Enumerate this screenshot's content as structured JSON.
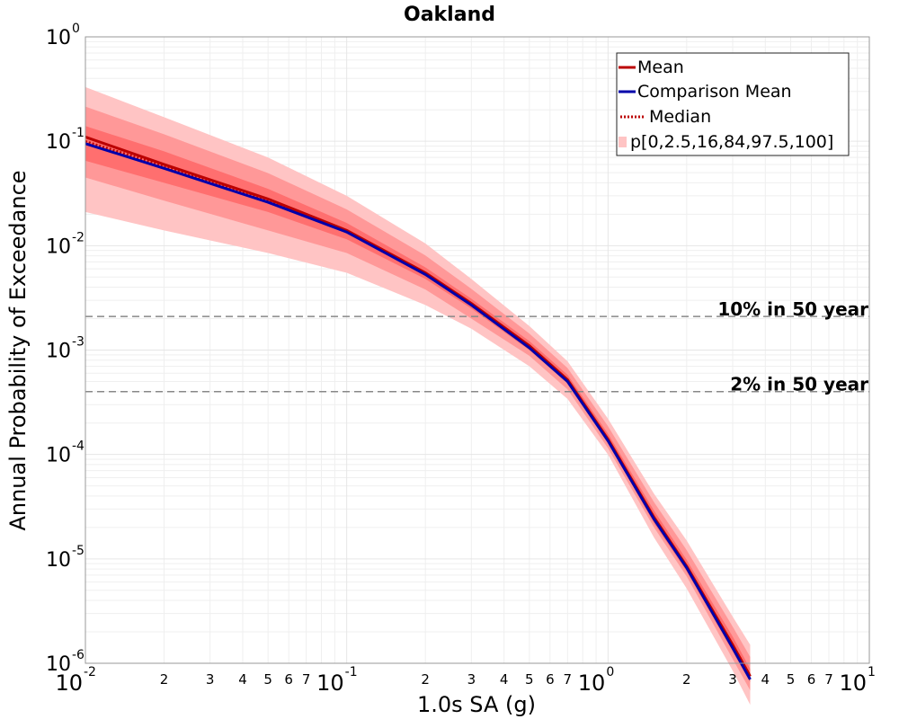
{
  "chart_data": {
    "type": "line",
    "title": "Oakland",
    "xlabel": "1.0s SA (g)",
    "ylabel": "Annual Probability of Exceedance",
    "x_scale": "log",
    "y_scale": "log",
    "xlim": [
      0.01,
      10
    ],
    "ylim": [
      1e-06,
      1
    ],
    "grid": true,
    "legend_position": "top-right",
    "x_major_ticks": [
      {
        "base": "10",
        "exp": "-2"
      },
      {
        "base": "10",
        "exp": "-1"
      },
      {
        "base": "10",
        "exp": "0"
      },
      {
        "base": "10",
        "exp": "1"
      }
    ],
    "y_major_ticks": [
      {
        "base": "10",
        "exp": "0"
      },
      {
        "base": "10",
        "exp": "-1"
      },
      {
        "base": "10",
        "exp": "-2"
      },
      {
        "base": "10",
        "exp": "-3"
      },
      {
        "base": "10",
        "exp": "-4"
      },
      {
        "base": "10",
        "exp": "-5"
      },
      {
        "base": "10",
        "exp": "-6"
      }
    ],
    "x_minor_tick_labels": [
      "2",
      "3",
      "4",
      "5",
      "6",
      "7"
    ],
    "colors": {
      "mean": "#bb0000",
      "comparison_mean": "#0000aa",
      "median": "#bb0000",
      "band_outer": "#ffc4c4",
      "band_middle": "#ff9898",
      "band_inner": "#ff6f6f",
      "reference_line": "#888888",
      "grid": "#e6e6e6",
      "axes": "#999999"
    },
    "x": [
      0.01,
      0.02,
      0.05,
      0.1,
      0.2,
      0.3,
      0.5,
      0.7,
      1.0,
      1.5,
      2.0,
      3.0,
      3.5
    ],
    "series": [
      {
        "name": "Mean",
        "style": "solid",
        "values": [
          0.11,
          0.06,
          0.028,
          0.014,
          0.0055,
          0.0028,
          0.0011,
          0.00052,
          0.00014,
          2.5e-05,
          8.5e-06,
          1.5e-06,
          7.5e-07
        ]
      },
      {
        "name": "Comparison Mean",
        "style": "solid",
        "values": [
          0.095,
          0.055,
          0.026,
          0.0135,
          0.0053,
          0.0027,
          0.00105,
          0.0005,
          0.000135,
          2.4e-05,
          8.2e-06,
          1.4e-06,
          7e-07
        ]
      },
      {
        "name": "Median",
        "style": "dotted",
        "values": [
          0.1,
          0.058,
          0.027,
          0.0137,
          0.0054,
          0.0028,
          0.0011,
          0.00052,
          0.00014,
          2.5e-05,
          8.5e-06,
          1.5e-06,
          7.6e-07
        ]
      }
    ],
    "band_label": "p[0,2.5,16,84,97.5,100]",
    "percentile_bands": [
      {
        "name": "p0-p100",
        "lower": [
          0.021,
          0.014,
          0.0085,
          0.0055,
          0.0027,
          0.0016,
          0.0007,
          0.00034,
          0.0001,
          1.6e-05,
          5.2e-06,
          8.5e-07,
          4e-07
        ],
        "upper": [
          0.33,
          0.17,
          0.07,
          0.03,
          0.0105,
          0.0048,
          0.0017,
          0.00078,
          0.00022,
          4.2e-05,
          1.5e-05,
          2.8e-06,
          1.5e-06
        ]
      },
      {
        "name": "p2.5-p97.5",
        "lower": [
          0.045,
          0.027,
          0.014,
          0.0085,
          0.0038,
          0.002,
          0.00088,
          0.00042,
          0.000115,
          2e-05,
          6.8e-06,
          1.1e-06,
          5.5e-07
        ]
      },
      {
        "name": "p16-p84",
        "lower": [
          0.065,
          0.04,
          0.021,
          0.0115,
          0.0048,
          0.0025,
          0.001,
          0.00048,
          0.00013,
          2.2e-05,
          7.6e-06,
          1.3e-06,
          6.6e-07
        ],
        "upper": [
          0.14,
          0.08,
          0.035,
          0.0165,
          0.0062,
          0.0031,
          0.00122,
          0.00058,
          0.000158,
          2.9e-05,
          9.8e-06,
          1.8e-06,
          8.8e-07
        ]
      }
    ],
    "reference_lines": [
      {
        "label": "10% in 50 year",
        "y": 0.0021
      },
      {
        "label": "2% in 50 year",
        "y": 0.0004
      }
    ]
  }
}
